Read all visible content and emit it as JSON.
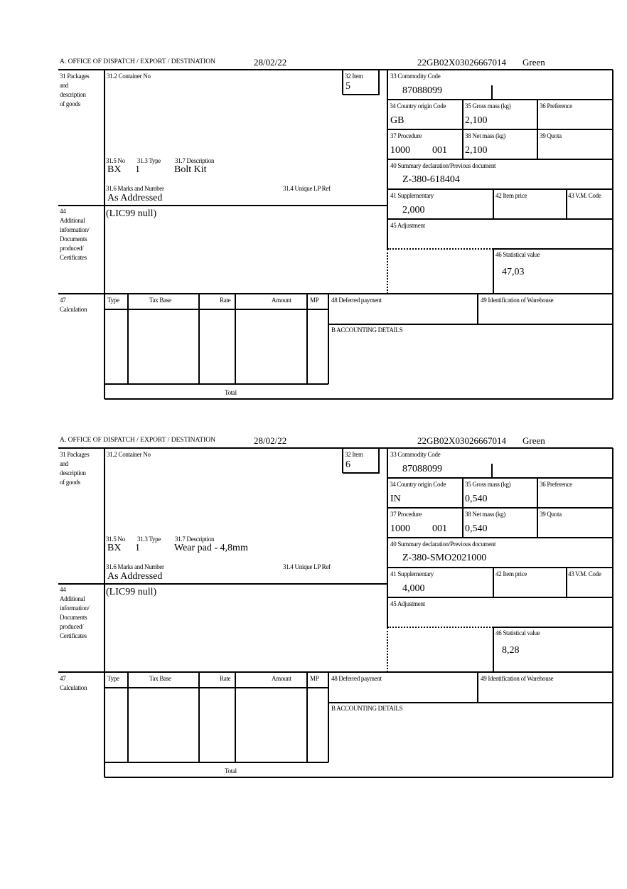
{
  "labels": {
    "office": "A.  OFFICE OF DISPATCH / EXPORT / DESTINATION",
    "box31": [
      "31 Packages",
      "and",
      "description",
      "of goods"
    ],
    "container_no": "31.2 Container No",
    "item": "32 Item",
    "commodity_code": "33 Commodity Code",
    "country_origin": "34 Country origin Code",
    "gross_mass": "35 Gross mass (kg)",
    "preference": "36 Preference",
    "procedure": "37 Procedure",
    "net_mass": "38 Net mass (kg)",
    "quota": "39 Quota",
    "summary_declaration": "40 Summary declaration/Previous document",
    "supplementary": "41 Supplementary",
    "item_price": "42 Item price",
    "vm_code": "43 V.M. Code",
    "adjustment": "45 Adjustment",
    "statistical_value": "46 Statistical value",
    "pkg_no": "31.5 No",
    "pkg_type": "31.3 Type",
    "pkg_description": "31.7 Description",
    "marks_numbers": "31.6 Marks and Number",
    "unique_lp_ref": "31.4 Unique LP Ref",
    "box44": [
      "44",
      "Additional",
      "information/",
      "Documents",
      "produced/",
      "Certificates"
    ],
    "box47": [
      "47",
      "Calculation"
    ],
    "calc_headers": [
      "Type",
      "Tax Base",
      "Rate",
      "Amount",
      "MP"
    ],
    "deferred_payment": "48 Deferred payment",
    "warehouse_id": "49 Identification of Warehouse",
    "accounting_details": "B ACCOUNTING DETAILS",
    "total": "Total"
  },
  "forms": [
    {
      "date": "28/02/22",
      "reference": "22GB02X03026667014",
      "route": "Green",
      "item": "5",
      "commodity_code": "87088099",
      "country_origin": "GB",
      "gross_mass": "2,100",
      "procedure": "1000",
      "procedure_suffix": "001",
      "net_mass": "2,100",
      "summary_declaration": "Z-380-618404",
      "supplementary": "2,000",
      "statistical_value": "47,03",
      "pkg_no": "BX",
      "pkg_type": "1",
      "pkg_description": "Bolt Kit",
      "marks_numbers": "As Addressed",
      "additional_info": "(LIC99 null)"
    },
    {
      "date": "28/02/22",
      "reference": "22GB02X03026667014",
      "route": "Green",
      "item": "6",
      "commodity_code": "87088099",
      "country_origin": "IN",
      "gross_mass": "0,540",
      "procedure": "1000",
      "procedure_suffix": "001",
      "net_mass": "0,540",
      "summary_declaration": "Z-380-SMO2021000",
      "supplementary": "4,000",
      "statistical_value": "8,28",
      "pkg_no": "BX",
      "pkg_type": "1",
      "pkg_description": "Wear pad - 4,8mm",
      "marks_numbers": "As Addressed",
      "additional_info": "(LIC99 null)"
    }
  ]
}
